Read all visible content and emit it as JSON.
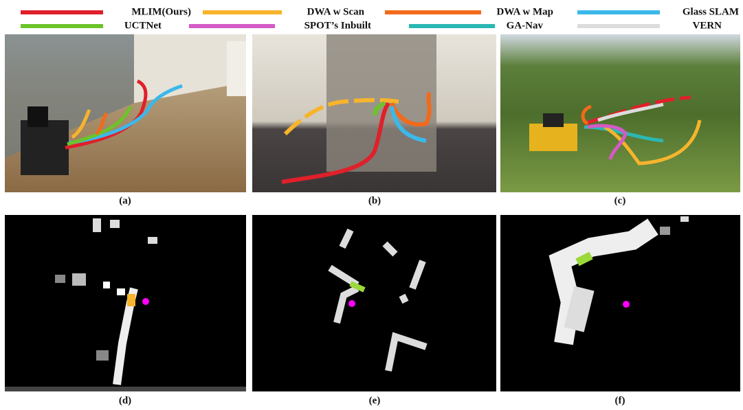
{
  "legend": [
    {
      "name": "MLIM(Ours)",
      "color": "#e0202a"
    },
    {
      "name": "DWA w Scan",
      "color": "#f7b42c"
    },
    {
      "name": "DWA w Map",
      "color": "#f26a1b"
    },
    {
      "name": "Glass SLAM",
      "color": "#3cb8ea"
    },
    {
      "name": "UCTNet",
      "color": "#6cc42a"
    },
    {
      "name": "SPOT’s Inbuilt",
      "color": "#d45ac6"
    },
    {
      "name": "GA-Nav",
      "color": "#2bb8b4"
    },
    {
      "name": "VERN",
      "color": "#dcdcdc"
    }
  ],
  "panels": [
    "(a)",
    "(b)",
    "(c)",
    "(d)",
    "(e)",
    "(f)"
  ]
}
